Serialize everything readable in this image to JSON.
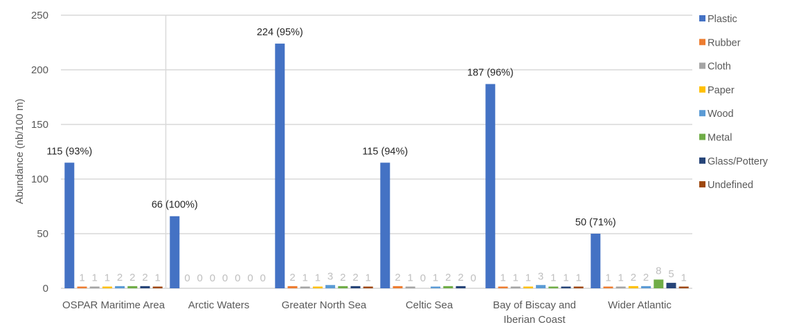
{
  "chart_data": {
    "type": "bar",
    "title": "",
    "xlabel": "",
    "ylabel": "Abundance (nb/100 m)",
    "ylim": [
      0,
      250
    ],
    "yticks": [
      0,
      50,
      100,
      150,
      200,
      250
    ],
    "grid": true,
    "legend_position": "right",
    "categories": [
      [
        "OSPAR Maritime Area"
      ],
      [
        "Arctic Waters"
      ],
      [
        "Greater North Sea"
      ],
      [
        "Celtic Sea"
      ],
      [
        "Bay of Biscay and",
        "Iberian Coast"
      ],
      [
        "Wider Atlantic"
      ]
    ],
    "category_names": [
      "OSPAR Maritime Area",
      "Arctic Waters",
      "Greater North Sea",
      "Celtic Sea",
      "Bay of Biscay and Iberian Coast",
      "Wider Atlantic"
    ],
    "series": [
      {
        "name": "Plastic",
        "color": "#4472C4",
        "values": [
          115,
          66,
          224,
          115,
          187,
          50
        ],
        "labels": [
          "115 (93%)",
          "66 (100%)",
          "224 (95%)",
          "115 (94%)",
          "187 (96%)",
          "50 (71%)"
        ]
      },
      {
        "name": "Rubber",
        "color": "#ED7D31",
        "values": [
          1,
          0,
          2,
          2,
          1,
          1
        ]
      },
      {
        "name": "Cloth",
        "color": "#A5A5A5",
        "values": [
          1,
          0,
          1,
          1,
          1,
          1
        ]
      },
      {
        "name": "Paper",
        "color": "#FFC000",
        "values": [
          1,
          0,
          1,
          0,
          1,
          2
        ]
      },
      {
        "name": "Wood",
        "color": "#5B9BD5",
        "values": [
          2,
          0,
          3,
          1,
          3,
          2
        ]
      },
      {
        "name": "Metal",
        "color": "#70AD47",
        "values": [
          2,
          0,
          2,
          2,
          1,
          8
        ]
      },
      {
        "name": "Glass/Pottery",
        "color": "#264478",
        "values": [
          2,
          0,
          2,
          2,
          1,
          5
        ]
      },
      {
        "name": "Undefined",
        "color": "#9E480E",
        "values": [
          1,
          0,
          1,
          0,
          1,
          1
        ]
      }
    ]
  }
}
